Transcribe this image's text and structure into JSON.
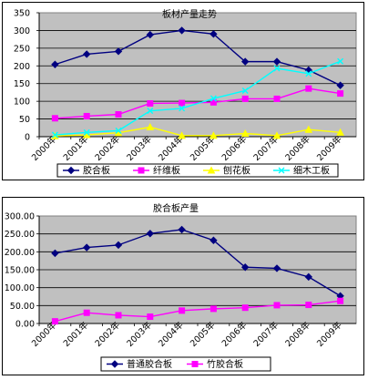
{
  "chart_data": [
    {
      "type": "line",
      "title": "板材产量走势",
      "categories": [
        "2000年",
        "2001年",
        "2002年",
        "2003年",
        "2004年",
        "2005年",
        "2006年",
        "2007年",
        "2008年",
        "2009年"
      ],
      "ylim": [
        0,
        350
      ],
      "yticks": [
        "0",
        "50",
        "100",
        "150",
        "200",
        "250",
        "300",
        "350"
      ],
      "grid": "horizontal",
      "legend": "bottom",
      "plot_background": "#c0c0c0",
      "series": [
        {
          "name": "胶合板",
          "color": "#000080",
          "marker": "diamond",
          "values": [
            204,
            233,
            241,
            288,
            300,
            290,
            212,
            212,
            188,
            145
          ]
        },
        {
          "name": "纤维板",
          "color": "#ff00ff",
          "marker": "square",
          "values": [
            52,
            58,
            63,
            94,
            95,
            97,
            107,
            107,
            136,
            122
          ]
        },
        {
          "name": "刨花板",
          "color": "#ffff00",
          "marker": "triangle",
          "values": [
            2,
            5,
            11,
            27,
            3,
            3,
            9,
            3,
            20,
            12
          ]
        },
        {
          "name": "细木工板",
          "color": "#00ffff",
          "marker": "x",
          "values": [
            5,
            12,
            17,
            73,
            80,
            108,
            130,
            193,
            178,
            213
          ]
        }
      ]
    },
    {
      "type": "line",
      "title": "胶合板产量",
      "categories": [
        "2000年",
        "2001年",
        "2002年",
        "2003年",
        "2004年",
        "2005年",
        "2006年",
        "2007年",
        "2008年",
        "2009年"
      ],
      "ylim": [
        0,
        300
      ],
      "yticks": [
        "0.00",
        "50.00",
        "100.00",
        "150.00",
        "200.00",
        "250.00",
        "300.00"
      ],
      "grid": "horizontal",
      "legend": "bottom",
      "plot_background": "#c0c0c0",
      "series": [
        {
          "name": "普通胶合板",
          "color": "#000080",
          "marker": "diamond",
          "values": [
            196,
            212,
            219,
            251,
            262,
            232,
            157,
            154,
            130,
            77
          ]
        },
        {
          "name": "竹胶合板",
          "color": "#ff00ff",
          "marker": "square",
          "values": [
            6,
            30,
            23,
            19,
            36,
            41,
            44,
            51,
            52,
            63
          ]
        }
      ]
    }
  ]
}
